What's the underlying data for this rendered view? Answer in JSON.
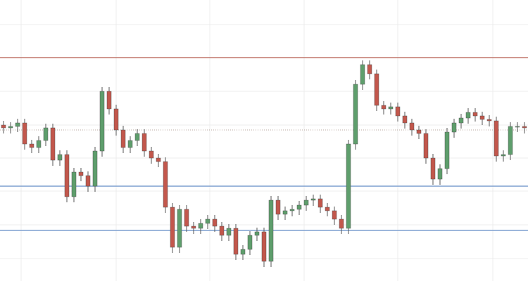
{
  "chart_data": {
    "type": "candlestick",
    "open": [
      222,
      218,
      220,
      225,
      195,
      190,
      200,
      218,
      172,
      180,
      120,
      155,
      150,
      135,
      185,
      270,
      245,
      215,
      190,
      200,
      210,
      185,
      175,
      170,
      105,
      48,
      102,
      78,
      75,
      82,
      88,
      78,
      65,
      75,
      38,
      45,
      65,
      70,
      28,
      115,
      95,
      100,
      102,
      108,
      115,
      117,
      105,
      100,
      88,
      75,
      195,
      280,
      308,
      295,
      250,
      245,
      248,
      235,
      225,
      215,
      210,
      175,
      145,
      160,
      212,
      225,
      232,
      240,
      235,
      230,
      228,
      178,
      180,
      220,
      220
    ],
    "high": [
      228,
      226,
      231,
      231,
      201,
      206,
      224,
      224,
      186,
      186,
      161,
      161,
      156,
      191,
      276,
      276,
      251,
      221,
      206,
      216,
      216,
      191,
      181,
      176,
      111,
      108,
      108,
      84,
      88,
      94,
      94,
      84,
      81,
      81,
      51,
      71,
      76,
      76,
      121,
      121,
      106,
      108,
      114,
      121,
      123,
      123,
      111,
      106,
      94,
      201,
      286,
      314,
      314,
      301,
      256,
      254,
      254,
      241,
      231,
      221,
      216,
      181,
      166,
      218,
      231,
      238,
      246,
      246,
      241,
      236,
      234,
      186,
      226,
      226,
      226
    ],
    "low": [
      210,
      210,
      212,
      187,
      182,
      182,
      192,
      164,
      164,
      112,
      112,
      142,
      127,
      127,
      177,
      237,
      207,
      182,
      182,
      192,
      177,
      167,
      162,
      97,
      40,
      40,
      70,
      67,
      67,
      74,
      70,
      57,
      57,
      30,
      30,
      37,
      57,
      20,
      20,
      87,
      87,
      92,
      94,
      100,
      107,
      97,
      92,
      80,
      67,
      67,
      187,
      272,
      287,
      242,
      237,
      237,
      227,
      217,
      207,
      202,
      167,
      137,
      137,
      152,
      204,
      217,
      224,
      227,
      222,
      220,
      170,
      170,
      172,
      212,
      210
    ],
    "close": [
      218,
      220,
      225,
      195,
      190,
      200,
      218,
      172,
      180,
      120,
      155,
      150,
      135,
      185,
      270,
      245,
      215,
      190,
      200,
      210,
      185,
      175,
      170,
      105,
      48,
      102,
      78,
      75,
      82,
      88,
      78,
      65,
      75,
      38,
      45,
      65,
      70,
      28,
      115,
      95,
      100,
      102,
      108,
      115,
      117,
      105,
      100,
      88,
      75,
      195,
      280,
      308,
      295,
      250,
      245,
      248,
      235,
      225,
      215,
      210,
      175,
      145,
      160,
      212,
      225,
      232,
      240,
      235,
      230,
      228,
      178,
      180,
      220,
      220,
      218
    ],
    "up_color": "#5e9e6c",
    "down_color": "#c2574c",
    "xlim": [
      -0.5,
      74.5
    ],
    "xticks": [
      2.5,
      16,
      29.3,
      42.7,
      56,
      69.5
    ],
    "ylim": [
      0,
      400
    ],
    "yticks": [
      32,
      80,
      128,
      175,
      222,
      270,
      318,
      365
    ],
    "grid": true,
    "levels": [
      {
        "value": 318,
        "color": "#c0766c"
      },
      {
        "value": 135,
        "color": "#7d9fcf"
      },
      {
        "value": 72,
        "color": "#7d9fcf"
      }
    ],
    "current_price": 215,
    "current_price_color": "#b8a8a0"
  }
}
